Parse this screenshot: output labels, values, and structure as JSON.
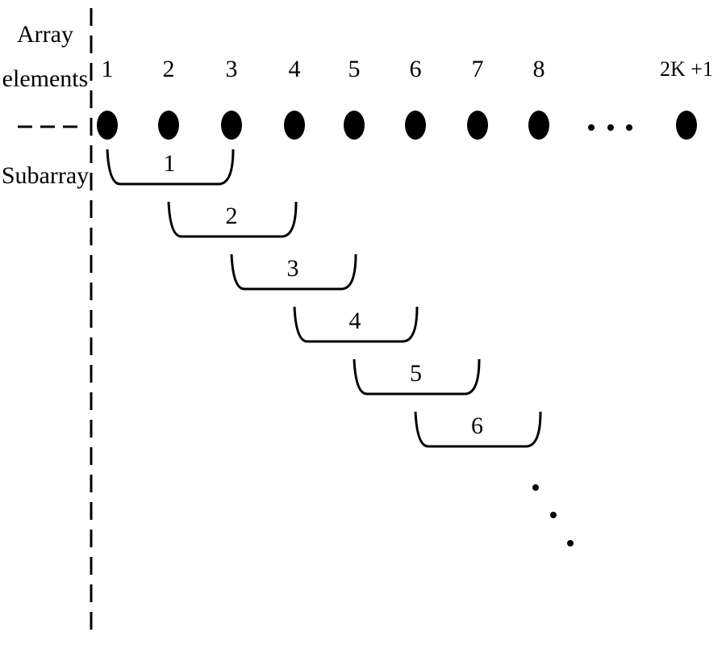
{
  "row_labels": {
    "array_elements": [
      "Array",
      "elements"
    ],
    "subarray": "Subarray"
  },
  "elements": [
    {
      "label": "1"
    },
    {
      "label": "2"
    },
    {
      "label": "3"
    },
    {
      "label": "4"
    },
    {
      "label": "5"
    },
    {
      "label": "6"
    },
    {
      "label": "7"
    },
    {
      "label": "8"
    },
    {
      "label": "2K +1"
    }
  ],
  "subarrays": [
    {
      "label": "1"
    },
    {
      "label": "2"
    },
    {
      "label": "3"
    },
    {
      "label": "4"
    },
    {
      "label": "5"
    },
    {
      "label": "6"
    }
  ]
}
